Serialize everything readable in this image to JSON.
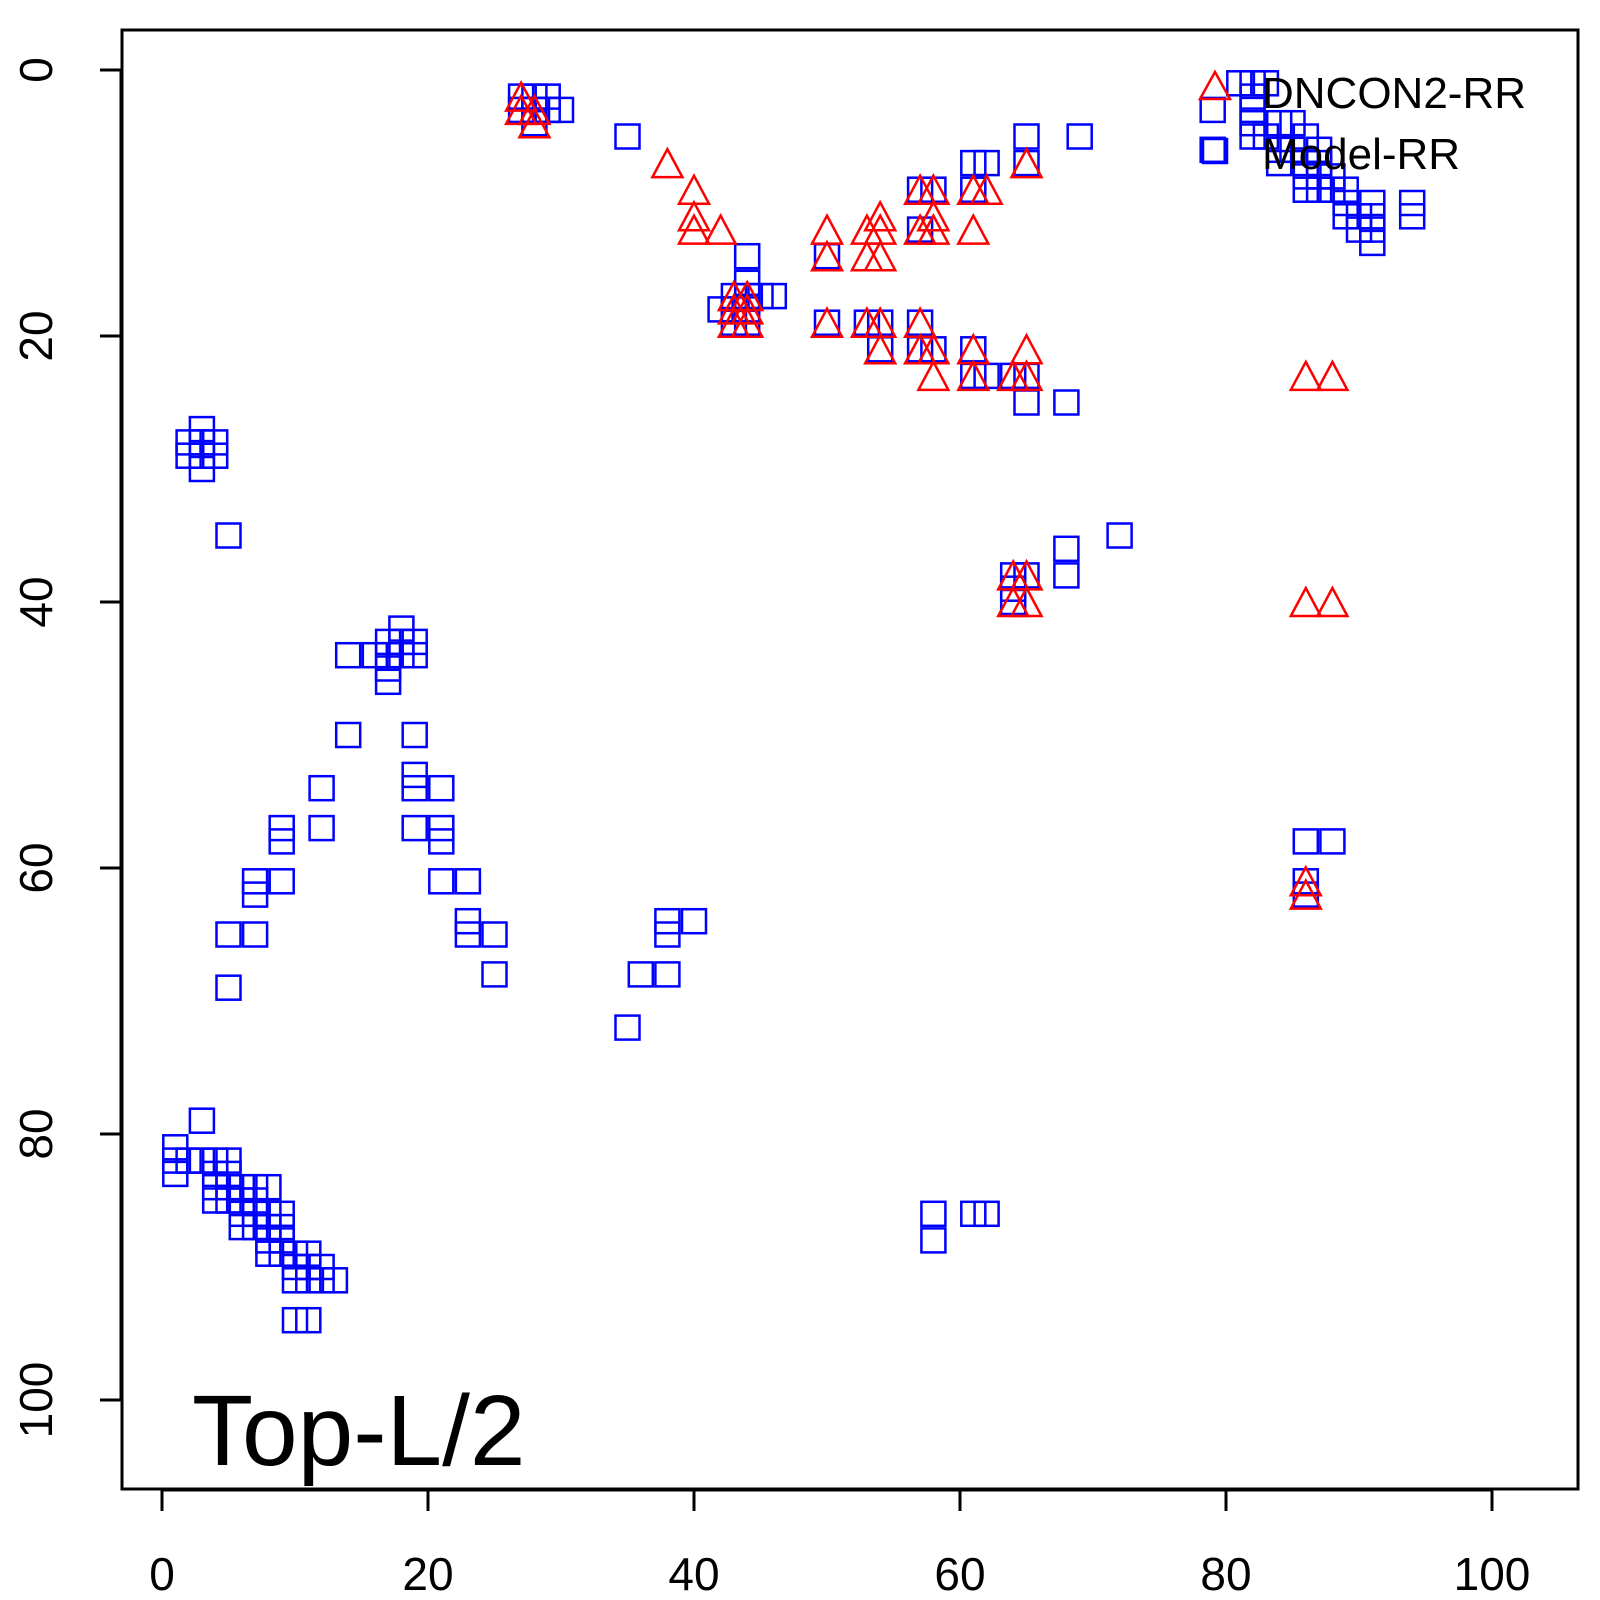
{
  "chart_data": {
    "type": "scatter",
    "title": "",
    "annotation": "Top-L/2",
    "xlabel": "",
    "ylabel": "",
    "xlim": [
      -3,
      107
    ],
    "ylim": [
      106,
      -3
    ],
    "y_axis_inverted": true,
    "x_ticks": [
      0,
      20,
      40,
      60,
      80,
      100
    ],
    "y_ticks": [
      0,
      20,
      40,
      60,
      80,
      100
    ],
    "x_tick_labels": [
      "0",
      "20",
      "40",
      "60",
      "80",
      "100"
    ],
    "y_tick_labels": [
      "0",
      "20",
      "40",
      "60",
      "80",
      "100"
    ],
    "grid": false,
    "legend_position": "top-right",
    "legend": [
      {
        "label": "DNCON2-RR",
        "marker": "triangle",
        "color": "#ff0000"
      },
      {
        "label": "Model-RR",
        "marker": "square",
        "color": "#0000ff"
      }
    ],
    "series": [
      {
        "name": "Model-RR",
        "marker": "square",
        "color": "#0000ff",
        "points": [
          [
            27,
            3
          ],
          [
            28,
            3
          ],
          [
            29,
            3
          ],
          [
            28,
            2
          ],
          [
            29,
            2
          ],
          [
            30,
            3
          ],
          [
            28,
            4
          ],
          [
            27,
            2
          ],
          [
            35,
            5
          ],
          [
            43,
            17
          ],
          [
            44,
            17
          ],
          [
            43,
            18
          ],
          [
            44,
            18
          ],
          [
            43,
            19
          ],
          [
            44,
            19
          ],
          [
            42,
            18
          ],
          [
            44,
            14
          ],
          [
            44,
            16
          ],
          [
            45,
            17
          ],
          [
            46,
            17
          ],
          [
            50,
            14
          ],
          [
            50,
            19
          ],
          [
            53,
            19
          ],
          [
            54,
            19
          ],
          [
            54,
            21
          ],
          [
            57,
            19
          ],
          [
            57,
            21
          ],
          [
            58,
            21
          ],
          [
            57,
            9
          ],
          [
            57,
            12
          ],
          [
            58,
            9
          ],
          [
            61,
            7
          ],
          [
            62,
            7
          ],
          [
            61,
            9
          ],
          [
            61,
            21
          ],
          [
            61,
            23
          ],
          [
            62,
            23
          ],
          [
            64,
            23
          ],
          [
            65,
            23
          ],
          [
            65,
            25
          ],
          [
            68,
            25
          ],
          [
            65,
            5
          ],
          [
            65,
            7
          ],
          [
            69,
            5
          ],
          [
            64,
            38
          ],
          [
            65,
            38
          ],
          [
            64,
            39
          ],
          [
            64,
            40
          ],
          [
            68,
            36
          ],
          [
            68,
            38
          ],
          [
            72,
            35
          ],
          [
            79,
            3
          ],
          [
            79,
            6
          ],
          [
            81,
            1
          ],
          [
            82,
            1
          ],
          [
            83,
            1
          ],
          [
            82,
            2
          ],
          [
            82,
            3
          ],
          [
            82,
            4
          ],
          [
            82,
            5
          ],
          [
            83,
            5
          ],
          [
            84,
            4
          ],
          [
            84,
            6
          ],
          [
            84,
            7
          ],
          [
            85,
            4
          ],
          [
            85,
            6
          ],
          [
            86,
            5
          ],
          [
            86,
            7
          ],
          [
            86,
            8
          ],
          [
            86,
            9
          ],
          [
            87,
            6
          ],
          [
            87,
            7
          ],
          [
            87,
            8
          ],
          [
            87,
            9
          ],
          [
            88,
            8
          ],
          [
            88,
            9
          ],
          [
            89,
            9
          ],
          [
            89,
            10
          ],
          [
            89,
            11
          ],
          [
            90,
            11
          ],
          [
            90,
            12
          ],
          [
            91,
            10
          ],
          [
            91,
            11
          ],
          [
            91,
            12
          ],
          [
            91,
            13
          ],
          [
            94,
            10
          ],
          [
            94,
            11
          ],
          [
            86,
            58
          ],
          [
            88,
            58
          ],
          [
            86,
            61
          ],
          [
            86,
            62
          ],
          [
            2,
            28
          ],
          [
            3,
            28
          ],
          [
            4,
            28
          ],
          [
            3,
            27
          ],
          [
            3,
            29
          ],
          [
            2,
            29
          ],
          [
            4,
            29
          ],
          [
            3,
            30
          ],
          [
            5,
            35
          ],
          [
            14,
            44
          ],
          [
            16,
            44
          ],
          [
            17,
            43
          ],
          [
            17,
            44
          ],
          [
            17,
            45
          ],
          [
            17,
            46
          ],
          [
            18,
            42
          ],
          [
            18,
            43
          ],
          [
            18,
            44
          ],
          [
            19,
            43
          ],
          [
            19,
            44
          ],
          [
            14,
            50
          ],
          [
            19,
            50
          ],
          [
            12,
            54
          ],
          [
            12,
            57
          ],
          [
            9,
            57
          ],
          [
            9,
            58
          ],
          [
            9,
            61
          ],
          [
            7,
            61
          ],
          [
            7,
            62
          ],
          [
            5,
            65
          ],
          [
            7,
            65
          ],
          [
            5,
            69
          ],
          [
            19,
            53
          ],
          [
            19,
            54
          ],
          [
            19,
            57
          ],
          [
            21,
            54
          ],
          [
            21,
            57
          ],
          [
            21,
            58
          ],
          [
            21,
            61
          ],
          [
            23,
            61
          ],
          [
            23,
            64
          ],
          [
            23,
            65
          ],
          [
            25,
            65
          ],
          [
            25,
            68
          ],
          [
            35,
            72
          ],
          [
            36,
            68
          ],
          [
            38,
            68
          ],
          [
            38,
            64
          ],
          [
            38,
            65
          ],
          [
            40,
            64
          ],
          [
            58,
            86
          ],
          [
            58,
            88
          ],
          [
            61,
            86
          ],
          [
            62,
            86
          ],
          [
            3,
            79
          ],
          [
            1,
            81
          ],
          [
            1,
            82
          ],
          [
            1,
            83
          ],
          [
            2,
            82
          ],
          [
            3,
            82
          ],
          [
            4,
            82
          ],
          [
            4,
            83
          ],
          [
            4,
            84
          ],
          [
            4,
            85
          ],
          [
            5,
            82
          ],
          [
            5,
            83
          ],
          [
            5,
            84
          ],
          [
            5,
            85
          ],
          [
            6,
            84
          ],
          [
            6,
            85
          ],
          [
            6,
            86
          ],
          [
            6,
            87
          ],
          [
            7,
            84
          ],
          [
            7,
            85
          ],
          [
            7,
            86
          ],
          [
            7,
            87
          ],
          [
            8,
            84
          ],
          [
            8,
            86
          ],
          [
            8,
            87
          ],
          [
            8,
            88
          ],
          [
            8,
            89
          ],
          [
            9,
            86
          ],
          [
            9,
            87
          ],
          [
            9,
            88
          ],
          [
            9,
            89
          ],
          [
            10,
            89
          ],
          [
            10,
            90
          ],
          [
            10,
            91
          ],
          [
            11,
            89
          ],
          [
            11,
            90
          ],
          [
            11,
            91
          ],
          [
            12,
            90
          ],
          [
            12,
            91
          ],
          [
            13,
            91
          ],
          [
            10,
            94
          ],
          [
            11,
            94
          ]
        ]
      },
      {
        "name": "DNCON2-RR",
        "marker": "triangle",
        "color": "#ff0000",
        "points": [
          [
            27,
            2
          ],
          [
            27,
            3
          ],
          [
            28,
            3
          ],
          [
            28,
            4
          ],
          [
            38,
            7
          ],
          [
            40,
            9
          ],
          [
            40,
            11
          ],
          [
            40,
            12
          ],
          [
            42,
            12
          ],
          [
            43,
            18
          ],
          [
            43,
            19
          ],
          [
            44,
            18
          ],
          [
            44,
            19
          ],
          [
            43,
            17
          ],
          [
            44,
            17
          ],
          [
            50,
            12
          ],
          [
            50,
            14
          ],
          [
            50,
            19
          ],
          [
            53,
            12
          ],
          [
            53,
            14
          ],
          [
            53,
            19
          ],
          [
            54,
            11
          ],
          [
            54,
            12
          ],
          [
            54,
            14
          ],
          [
            54,
            19
          ],
          [
            54,
            21
          ],
          [
            57,
            9
          ],
          [
            57,
            12
          ],
          [
            57,
            19
          ],
          [
            57,
            21
          ],
          [
            58,
            9
          ],
          [
            58,
            11
          ],
          [
            58,
            12
          ],
          [
            58,
            21
          ],
          [
            58,
            23
          ],
          [
            61,
            9
          ],
          [
            61,
            12
          ],
          [
            61,
            21
          ],
          [
            61,
            23
          ],
          [
            62,
            9
          ],
          [
            64,
            23
          ],
          [
            65,
            7
          ],
          [
            65,
            21
          ],
          [
            65,
            23
          ],
          [
            64,
            38
          ],
          [
            64,
            40
          ],
          [
            65,
            38
          ],
          [
            65,
            40
          ],
          [
            86,
            23
          ],
          [
            88,
            23
          ],
          [
            86,
            40
          ],
          [
            88,
            40
          ],
          [
            86,
            61
          ],
          [
            86,
            62
          ]
        ]
      }
    ]
  }
}
